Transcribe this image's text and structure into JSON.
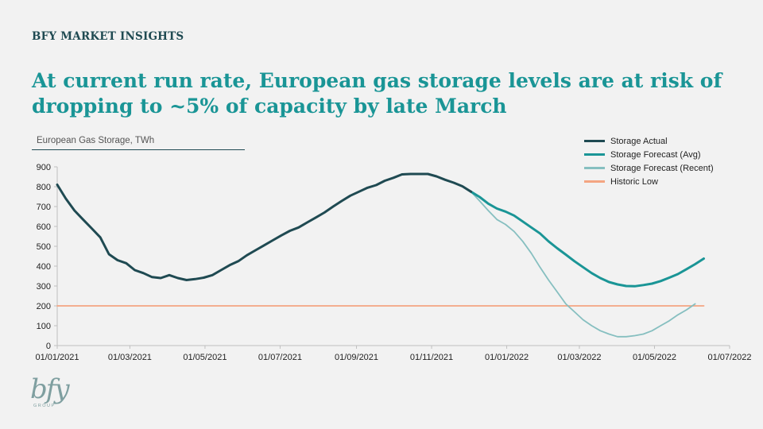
{
  "header": {
    "brand": "BFY MARKET INSIGHTS",
    "headline": "At current run rate, European gas storage levels are at risk of dropping to ~5% of capacity by late March"
  },
  "logo": {
    "mark": "bfy",
    "sub": "GROUP"
  },
  "chart_data": {
    "type": "line",
    "title": "European Gas Storage, TWh",
    "xlabel": "",
    "ylabel": "",
    "ylim": [
      0,
      900
    ],
    "y_ticks": [
      "0",
      "100",
      "200",
      "300",
      "400",
      "500",
      "600",
      "700",
      "800",
      "900"
    ],
    "x_range": [
      "2021-01-01",
      "2022-07-01"
    ],
    "x_ticks": [
      "01/01/2021",
      "01/03/2021",
      "01/05/2021",
      "01/07/2021",
      "01/09/2021",
      "01/11/2021",
      "01/01/2022",
      "01/03/2022",
      "01/05/2022",
      "01/07/2022"
    ],
    "legend_position": "top-right",
    "grid": false,
    "series": [
      {
        "name": "Storage Actual",
        "color": "#1f4a52",
        "points": [
          [
            "2021-01-01",
            810
          ],
          [
            "2021-01-08",
            740
          ],
          [
            "2021-01-15",
            680
          ],
          [
            "2021-01-22",
            635
          ],
          [
            "2021-01-29",
            590
          ],
          [
            "2021-02-05",
            545
          ],
          [
            "2021-02-12",
            460
          ],
          [
            "2021-02-19",
            430
          ],
          [
            "2021-02-26",
            415
          ],
          [
            "2021-03-05",
            380
          ],
          [
            "2021-03-12",
            365
          ],
          [
            "2021-03-19",
            345
          ],
          [
            "2021-03-26",
            340
          ],
          [
            "2021-04-02",
            355
          ],
          [
            "2021-04-09",
            340
          ],
          [
            "2021-04-16",
            330
          ],
          [
            "2021-04-23",
            335
          ],
          [
            "2021-04-30",
            342
          ],
          [
            "2021-05-07",
            355
          ],
          [
            "2021-05-14",
            380
          ],
          [
            "2021-05-21",
            405
          ],
          [
            "2021-05-28",
            425
          ],
          [
            "2021-06-04",
            455
          ],
          [
            "2021-06-11",
            480
          ],
          [
            "2021-06-18",
            505
          ],
          [
            "2021-06-25",
            530
          ],
          [
            "2021-07-02",
            555
          ],
          [
            "2021-07-09",
            578
          ],
          [
            "2021-07-16",
            595
          ],
          [
            "2021-07-23",
            620
          ],
          [
            "2021-07-30",
            645
          ],
          [
            "2021-08-06",
            670
          ],
          [
            "2021-08-13",
            700
          ],
          [
            "2021-08-20",
            728
          ],
          [
            "2021-08-27",
            755
          ],
          [
            "2021-09-03",
            775
          ],
          [
            "2021-09-10",
            795
          ],
          [
            "2021-09-17",
            808
          ],
          [
            "2021-09-24",
            830
          ],
          [
            "2021-10-01",
            845
          ],
          [
            "2021-10-08",
            862
          ],
          [
            "2021-10-15",
            864
          ],
          [
            "2021-10-22",
            864
          ],
          [
            "2021-10-29",
            864
          ],
          [
            "2021-11-05",
            852
          ],
          [
            "2021-11-12",
            835
          ],
          [
            "2021-11-19",
            820
          ],
          [
            "2021-11-26",
            802
          ],
          [
            "2021-12-03",
            775
          ]
        ]
      },
      {
        "name": "Storage Forecast (Avg)",
        "color": "#1a9596",
        "points": [
          [
            "2021-12-03",
            775
          ],
          [
            "2021-12-10",
            748
          ],
          [
            "2021-12-17",
            715
          ],
          [
            "2021-12-24",
            690
          ],
          [
            "2021-12-31",
            675
          ],
          [
            "2022-01-07",
            655
          ],
          [
            "2022-01-14",
            625
          ],
          [
            "2022-01-21",
            595
          ],
          [
            "2022-01-28",
            565
          ],
          [
            "2022-02-04",
            525
          ],
          [
            "2022-02-11",
            490
          ],
          [
            "2022-02-18",
            458
          ],
          [
            "2022-02-25",
            425
          ],
          [
            "2022-03-04",
            395
          ],
          [
            "2022-03-11",
            365
          ],
          [
            "2022-03-18",
            340
          ],
          [
            "2022-03-25",
            320
          ],
          [
            "2022-04-01",
            308
          ],
          [
            "2022-04-08",
            300
          ],
          [
            "2022-04-15",
            299
          ],
          [
            "2022-04-22",
            305
          ],
          [
            "2022-04-29",
            312
          ],
          [
            "2022-05-06",
            325
          ],
          [
            "2022-05-13",
            342
          ],
          [
            "2022-05-20",
            360
          ],
          [
            "2022-05-27",
            385
          ],
          [
            "2022-06-03",
            410
          ],
          [
            "2022-06-10",
            438
          ]
        ]
      },
      {
        "name": "Storage Forecast (Recent)",
        "color": "#86bfc0",
        "points": [
          [
            "2021-12-03",
            775
          ],
          [
            "2021-12-10",
            728
          ],
          [
            "2021-12-17",
            680
          ],
          [
            "2021-12-24",
            635
          ],
          [
            "2021-12-31",
            610
          ],
          [
            "2022-01-07",
            575
          ],
          [
            "2022-01-14",
            525
          ],
          [
            "2022-01-21",
            465
          ],
          [
            "2022-01-28",
            395
          ],
          [
            "2022-02-04",
            330
          ],
          [
            "2022-02-11",
            270
          ],
          [
            "2022-02-18",
            210
          ],
          [
            "2022-02-25",
            170
          ],
          [
            "2022-03-04",
            130
          ],
          [
            "2022-03-11",
            100
          ],
          [
            "2022-03-18",
            75
          ],
          [
            "2022-03-25",
            58
          ],
          [
            "2022-04-01",
            45
          ],
          [
            "2022-04-08",
            45
          ],
          [
            "2022-04-15",
            50
          ],
          [
            "2022-04-22",
            58
          ],
          [
            "2022-04-29",
            75
          ],
          [
            "2022-05-06",
            100
          ],
          [
            "2022-05-13",
            125
          ],
          [
            "2022-05-20",
            155
          ],
          [
            "2022-05-27",
            180
          ],
          [
            "2022-06-03",
            210
          ]
        ]
      },
      {
        "name": "Historic Low",
        "color": "#f4a582",
        "points": [
          [
            "2021-01-01",
            200
          ],
          [
            "2022-06-10",
            200
          ]
        ]
      }
    ]
  }
}
